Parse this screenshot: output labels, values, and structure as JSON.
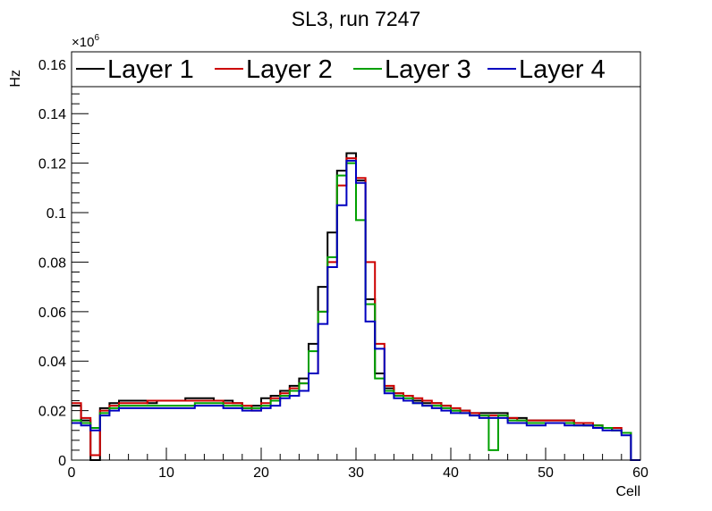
{
  "chart_data": {
    "type": "line",
    "style": "step-histogram",
    "title": "SL3, run 7247",
    "xlabel": "Cell",
    "ylabel": "Hz",
    "y_multiplier": "×10",
    "y_exponent": "6",
    "xlim": [
      0,
      60
    ],
    "ylim": [
      0,
      0.165
    ],
    "x_ticks": [
      "0",
      "10",
      "20",
      "30",
      "40",
      "50",
      "60"
    ],
    "y_ticks": [
      "0",
      "0.02",
      "0.04",
      "0.06",
      "0.08",
      "0.1",
      "0.12",
      "0.14",
      "0.16"
    ],
    "legend_position": "top",
    "grid": false,
    "bin_width": 1,
    "x": [
      0,
      1,
      2,
      3,
      4,
      5,
      6,
      7,
      8,
      9,
      10,
      11,
      12,
      13,
      14,
      15,
      16,
      17,
      18,
      19,
      20,
      21,
      22,
      23,
      24,
      25,
      26,
      27,
      28,
      29,
      30,
      31,
      32,
      33,
      34,
      35,
      36,
      37,
      38,
      39,
      40,
      41,
      42,
      43,
      44,
      45,
      46,
      47,
      48,
      49,
      50,
      51,
      52,
      53,
      54,
      55,
      56,
      57,
      58,
      59
    ],
    "series": [
      {
        "name": "Layer 1",
        "color": "#000000",
        "values": [
          0.022,
          0.016,
          0.0,
          0.021,
          0.023,
          0.024,
          0.024,
          0.024,
          0.023,
          0.024,
          0.024,
          0.024,
          0.025,
          0.025,
          0.025,
          0.024,
          0.024,
          0.023,
          0.021,
          0.022,
          0.025,
          0.026,
          0.028,
          0.03,
          0.033,
          0.047,
          0.07,
          0.092,
          0.117,
          0.124,
          0.113,
          0.065,
          0.035,
          0.029,
          0.027,
          0.026,
          0.024,
          0.023,
          0.023,
          0.022,
          0.02,
          0.02,
          0.019,
          0.019,
          0.019,
          0.019,
          0.017,
          0.017,
          0.016,
          0.016,
          0.016,
          0.016,
          0.016,
          0.015,
          0.014,
          0.014,
          0.013,
          0.012,
          0.011,
          0.0
        ]
      },
      {
        "name": "Layer 2",
        "color": "#cc0000",
        "values": [
          0.023,
          0.017,
          0.002,
          0.02,
          0.022,
          0.023,
          0.023,
          0.023,
          0.024,
          0.024,
          0.024,
          0.024,
          0.024,
          0.024,
          0.024,
          0.024,
          0.023,
          0.023,
          0.022,
          0.02,
          0.023,
          0.025,
          0.027,
          0.029,
          0.031,
          0.035,
          0.06,
          0.08,
          0.111,
          0.122,
          0.114,
          0.08,
          0.047,
          0.03,
          0.027,
          0.026,
          0.025,
          0.024,
          0.023,
          0.022,
          0.021,
          0.02,
          0.019,
          0.018,
          0.018,
          0.018,
          0.017,
          0.016,
          0.016,
          0.016,
          0.016,
          0.016,
          0.016,
          0.015,
          0.015,
          0.014,
          0.013,
          0.013,
          0.011,
          0.0
        ]
      },
      {
        "name": "Layer 3",
        "color": "#00a000",
        "values": [
          0.016,
          0.015,
          0.013,
          0.019,
          0.021,
          0.022,
          0.022,
          0.022,
          0.022,
          0.022,
          0.022,
          0.022,
          0.022,
          0.023,
          0.023,
          0.023,
          0.022,
          0.022,
          0.021,
          0.021,
          0.022,
          0.024,
          0.026,
          0.028,
          0.031,
          0.044,
          0.06,
          0.082,
          0.115,
          0.12,
          0.097,
          0.063,
          0.033,
          0.028,
          0.026,
          0.025,
          0.023,
          0.022,
          0.022,
          0.021,
          0.02,
          0.019,
          0.018,
          0.018,
          0.004,
          0.018,
          0.016,
          0.016,
          0.015,
          0.015,
          0.015,
          0.015,
          0.015,
          0.014,
          0.014,
          0.014,
          0.013,
          0.012,
          0.011,
          0.0
        ]
      },
      {
        "name": "Layer 4",
        "color": "#0000c0",
        "values": [
          0.015,
          0.014,
          0.012,
          0.018,
          0.02,
          0.021,
          0.021,
          0.021,
          0.021,
          0.021,
          0.021,
          0.021,
          0.021,
          0.022,
          0.022,
          0.022,
          0.021,
          0.021,
          0.02,
          0.02,
          0.021,
          0.022,
          0.025,
          0.026,
          0.028,
          0.035,
          0.055,
          0.078,
          0.103,
          0.121,
          0.112,
          0.056,
          0.045,
          0.027,
          0.025,
          0.024,
          0.023,
          0.022,
          0.021,
          0.02,
          0.019,
          0.019,
          0.018,
          0.017,
          0.017,
          0.017,
          0.015,
          0.015,
          0.014,
          0.014,
          0.015,
          0.015,
          0.014,
          0.014,
          0.014,
          0.013,
          0.012,
          0.012,
          0.01,
          0.0
        ]
      }
    ]
  }
}
